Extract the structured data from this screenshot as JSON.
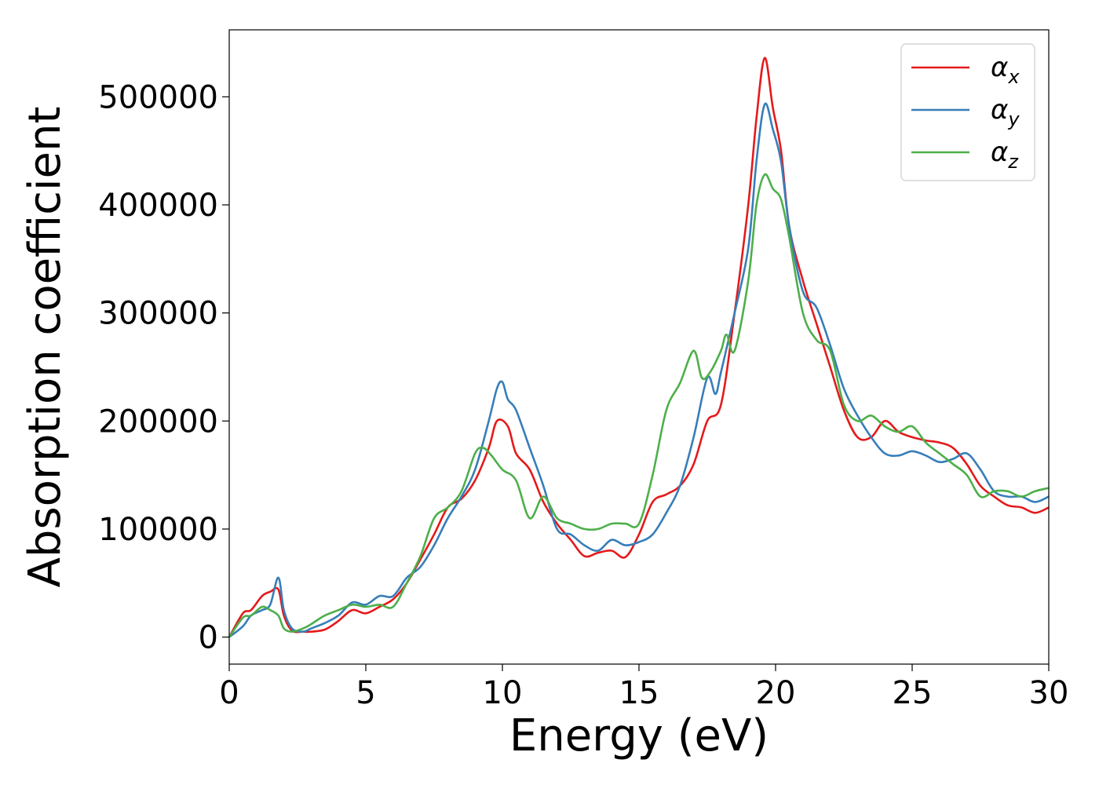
{
  "chart_data": {
    "type": "line",
    "title": "",
    "xlabel": "Energy (eV)",
    "ylabel": "Absorption coefficient",
    "xlim": [
      0,
      30
    ],
    "ylim": [
      -25000,
      562000
    ],
    "xticks": [
      0,
      5,
      10,
      15,
      20,
      25,
      30
    ],
    "yticks": [
      0,
      100000,
      200000,
      300000,
      400000,
      500000
    ],
    "grid": false,
    "legend_position": "top-right",
    "series": [
      {
        "name": "αx",
        "label_base": "α",
        "label_sub": "x",
        "color": "#e41a1c",
        "x": [
          0,
          0.5,
          0.8,
          1.2,
          1.5,
          1.8,
          2.0,
          2.3,
          2.7,
          3.0,
          3.5,
          4.0,
          4.5,
          5.0,
          5.5,
          6.0,
          6.5,
          7.0,
          7.5,
          8.0,
          8.5,
          9.0,
          9.5,
          9.8,
          10.2,
          10.5,
          11.0,
          11.5,
          12.0,
          12.5,
          13.0,
          13.5,
          14.0,
          14.5,
          15.0,
          15.5,
          16.0,
          16.5,
          17.0,
          17.5,
          18.0,
          18.5,
          19.0,
          19.3,
          19.6,
          19.9,
          20.2,
          20.5,
          21.0,
          21.5,
          22.0,
          22.5,
          23.0,
          23.5,
          24.0,
          24.5,
          25.0,
          25.5,
          26.0,
          26.5,
          27.0,
          27.5,
          28.0,
          28.5,
          29.0,
          29.5,
          30.0
        ],
        "y": [
          0,
          22000,
          25000,
          38000,
          42000,
          44000,
          20000,
          6000,
          5000,
          5000,
          7000,
          15000,
          25000,
          22000,
          28000,
          35000,
          50000,
          72000,
          95000,
          120000,
          128000,
          145000,
          175000,
          200000,
          195000,
          170000,
          155000,
          125000,
          105000,
          90000,
          75000,
          78000,
          80000,
          74000,
          95000,
          125000,
          132000,
          140000,
          160000,
          200000,
          215000,
          300000,
          400000,
          480000,
          536000,
          490000,
          450000,
          380000,
          330000,
          290000,
          250000,
          210000,
          185000,
          185000,
          200000,
          190000,
          185000,
          182000,
          180000,
          175000,
          160000,
          140000,
          130000,
          122000,
          120000,
          115000,
          120000
        ]
      },
      {
        "name": "αy",
        "label_base": "α",
        "label_sub": "y",
        "color": "#377eb8",
        "x": [
          0,
          0.5,
          0.8,
          1.2,
          1.5,
          1.8,
          2.0,
          2.3,
          2.7,
          3.0,
          3.5,
          4.0,
          4.5,
          5.0,
          5.5,
          6.0,
          6.5,
          7.0,
          7.5,
          8.0,
          8.5,
          9.0,
          9.5,
          9.8,
          10.0,
          10.2,
          10.5,
          11.0,
          11.5,
          12.0,
          12.5,
          13.0,
          13.5,
          14.0,
          14.5,
          15.0,
          15.5,
          16.0,
          16.5,
          17.0,
          17.5,
          17.8,
          18.0,
          18.5,
          19.0,
          19.3,
          19.6,
          19.9,
          20.2,
          20.5,
          21.0,
          21.5,
          22.0,
          22.5,
          23.0,
          23.5,
          24.0,
          24.5,
          25.0,
          25.5,
          26.0,
          26.5,
          27.0,
          27.5,
          28.0,
          28.5,
          29.0,
          29.5,
          30.0
        ],
        "y": [
          0,
          10000,
          20000,
          25000,
          30000,
          55000,
          25000,
          8000,
          5000,
          8000,
          13000,
          20000,
          32000,
          30000,
          38000,
          38000,
          55000,
          65000,
          85000,
          110000,
          130000,
          155000,
          200000,
          230000,
          236000,
          220000,
          210000,
          175000,
          140000,
          100000,
          95000,
          85000,
          80000,
          90000,
          85000,
          88000,
          95000,
          115000,
          140000,
          185000,
          240000,
          225000,
          245000,
          300000,
          360000,
          440000,
          493000,
          470000,
          440000,
          380000,
          320000,
          305000,
          270000,
          230000,
          205000,
          185000,
          170000,
          168000,
          172000,
          168000,
          162000,
          165000,
          170000,
          155000,
          135000,
          130000,
          130000,
          125000,
          130000
        ]
      },
      {
        "name": "αz",
        "label_base": "α",
        "label_sub": "z",
        "color": "#4daf4a",
        "x": [
          0,
          0.5,
          0.8,
          1.2,
          1.5,
          1.8,
          2.0,
          2.3,
          2.7,
          3.0,
          3.5,
          4.0,
          4.5,
          5.0,
          5.5,
          6.0,
          6.5,
          7.0,
          7.5,
          8.0,
          8.5,
          9.0,
          9.3,
          9.6,
          10.0,
          10.5,
          11.0,
          11.5,
          12.0,
          12.5,
          13.0,
          13.5,
          14.0,
          14.5,
          15.0,
          15.5,
          16.0,
          16.5,
          17.0,
          17.3,
          17.6,
          18.0,
          18.2,
          18.5,
          19.0,
          19.3,
          19.6,
          19.9,
          20.2,
          20.5,
          21.0,
          21.5,
          22.0,
          22.5,
          23.0,
          23.5,
          24.0,
          24.5,
          25.0,
          25.5,
          26.0,
          26.5,
          27.0,
          27.5,
          28.0,
          28.5,
          29.0,
          29.5,
          30.0
        ],
        "y": [
          0,
          18000,
          20000,
          28000,
          25000,
          20000,
          8000,
          5000,
          8000,
          12000,
          20000,
          25000,
          30000,
          28000,
          30000,
          28000,
          50000,
          75000,
          110000,
          120000,
          135000,
          170000,
          175000,
          168000,
          155000,
          145000,
          110000,
          130000,
          110000,
          105000,
          100000,
          100000,
          105000,
          105000,
          105000,
          150000,
          210000,
          235000,
          265000,
          240000,
          245000,
          265000,
          280000,
          265000,
          330000,
          400000,
          428000,
          415000,
          405000,
          370000,
          300000,
          275000,
          265000,
          215000,
          200000,
          205000,
          195000,
          190000,
          195000,
          180000,
          170000,
          160000,
          150000,
          130000,
          135000,
          135000,
          130000,
          135000,
          138000
        ]
      }
    ]
  }
}
